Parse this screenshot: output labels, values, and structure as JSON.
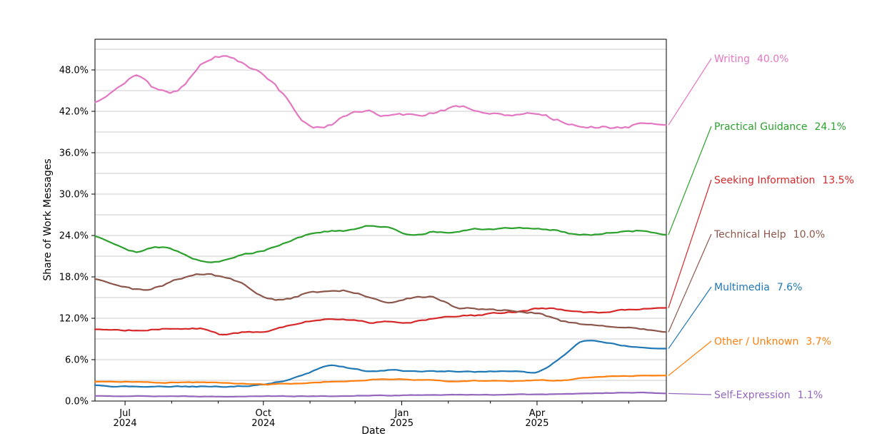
{
  "figure": {
    "ylabel": "Share of Work Messages",
    "xlabel": "Date",
    "background": "#ffffff",
    "grid_color": "#cccccc",
    "axis_color": "#000000",
    "text_color": "#000000"
  },
  "chart_data": {
    "type": "line",
    "title": "",
    "xlabel": "Date",
    "ylabel": "Share of Work Messages",
    "ylim": [
      0,
      52.45
    ],
    "grid": "horizontal gridlines every 3%, labels every 6%",
    "legend_position": "right-side direct labels with leader lines",
    "y_tick_labels": [
      "0.0%",
      "6.0%",
      "12.0%",
      "18.0%",
      "24.0%",
      "30.0%",
      "36.0%",
      "42.0%",
      "48.0%"
    ],
    "y_tick_values": [
      0,
      6,
      12,
      18,
      24,
      30,
      36,
      42,
      48
    ],
    "x_tick_labels": [
      [
        "Jul",
        "2024"
      ],
      [
        "Oct",
        "2024"
      ],
      [
        "Jan",
        "2025"
      ],
      [
        "Apr",
        "2025"
      ]
    ],
    "x_tick_days": [
      20,
      112,
      204,
      294
    ],
    "x_minor_tick_days": [
      51,
      82,
      143,
      173,
      235,
      263,
      324,
      355
    ],
    "x_range_days": 380,
    "x_start_date": "2024-06-11",
    "x_end_date": "2025-06-26",
    "sample_dates": [
      "2024-06-11",
      "2024-06-25",
      "2024-07-09",
      "2024-07-23",
      "2024-08-06",
      "2024-08-20",
      "2024-09-03",
      "2024-09-17",
      "2024-10-01",
      "2024-10-15",
      "2024-10-29",
      "2024-11-12",
      "2024-11-26",
      "2024-12-10",
      "2024-12-24",
      "2025-01-07",
      "2025-01-21",
      "2025-02-04",
      "2025-02-18",
      "2025-03-04",
      "2025-03-18",
      "2025-04-01",
      "2025-04-15",
      "2025-04-29",
      "2025-05-13",
      "2025-05-27",
      "2025-06-10",
      "2025-06-24"
    ],
    "series": [
      {
        "name": "Writing",
        "label_value": "40.0%",
        "color": "#e377c2",
        "values": [
          43.3,
          45.2,
          47.3,
          45.0,
          45.2,
          48.8,
          49.9,
          48.8,
          47.2,
          44.0,
          40.3,
          39.9,
          41.4,
          41.8,
          41.3,
          41.5,
          41.8,
          42.6,
          42.3,
          41.7,
          41.5,
          41.4,
          40.6,
          39.8,
          39.7,
          39.8,
          40.1,
          40.0
        ]
      },
      {
        "name": "Practical Guidance",
        "label_value": "24.1%",
        "color": "#2ca02c",
        "values": [
          23.9,
          22.7,
          21.7,
          22.3,
          21.6,
          20.4,
          20.3,
          21.2,
          21.9,
          23.0,
          24.1,
          24.6,
          24.7,
          25.4,
          25.0,
          24.1,
          24.5,
          24.4,
          24.9,
          24.9,
          25.1,
          25.0,
          24.6,
          24.1,
          24.3,
          24.6,
          24.6,
          24.1
        ]
      },
      {
        "name": "Seeking Information",
        "label_value": "13.5%",
        "color": "#d62728",
        "values": [
          10.4,
          10.3,
          10.3,
          10.4,
          10.4,
          10.5,
          9.6,
          9.9,
          10.1,
          10.9,
          11.6,
          11.8,
          11.7,
          11.4,
          11.5,
          11.5,
          11.9,
          12.3,
          12.4,
          12.7,
          13.0,
          13.4,
          13.3,
          12.9,
          12.9,
          13.2,
          13.4,
          13.5
        ]
      },
      {
        "name": "Technical Help",
        "label_value": "10.0%",
        "color": "#8c564b",
        "values": [
          17.7,
          16.9,
          16.1,
          16.6,
          17.7,
          18.4,
          18.0,
          17.0,
          15.0,
          14.7,
          15.6,
          15.9,
          16.0,
          15.1,
          14.4,
          14.9,
          15.0,
          13.7,
          13.4,
          13.2,
          13.0,
          12.6,
          11.7,
          11.2,
          10.8,
          10.6,
          10.4,
          10.0
        ]
      },
      {
        "name": "Multimedia",
        "label_value": "7.6%",
        "color": "#1f77b4",
        "values": [
          2.3,
          2.1,
          2.1,
          2.1,
          2.1,
          2.1,
          2.1,
          2.2,
          2.4,
          3.0,
          4.0,
          5.1,
          4.8,
          4.3,
          4.5,
          4.3,
          4.3,
          4.3,
          4.2,
          4.3,
          4.3,
          4.3,
          6.3,
          8.6,
          8.5,
          8.0,
          7.7,
          7.6
        ]
      },
      {
        "name": "Other / Unknown",
        "label_value": "3.7%",
        "color": "#ff7f0e",
        "values": [
          2.8,
          2.8,
          2.8,
          2.7,
          2.7,
          2.7,
          2.6,
          2.5,
          2.4,
          2.5,
          2.6,
          2.8,
          2.9,
          3.1,
          3.2,
          3.1,
          3.0,
          2.8,
          2.9,
          2.9,
          2.9,
          3.0,
          3.0,
          3.3,
          3.5,
          3.6,
          3.7,
          3.7
        ]
      },
      {
        "name": "Self-Expression",
        "label_value": "1.1%",
        "color": "#9467bd",
        "values": [
          0.75,
          0.7,
          0.7,
          0.7,
          0.7,
          0.65,
          0.65,
          0.65,
          0.7,
          0.7,
          0.7,
          0.7,
          0.75,
          0.8,
          0.8,
          0.85,
          0.85,
          0.9,
          0.9,
          0.9,
          0.95,
          0.95,
          1.0,
          1.05,
          1.15,
          1.2,
          1.2,
          1.1
        ]
      }
    ]
  }
}
